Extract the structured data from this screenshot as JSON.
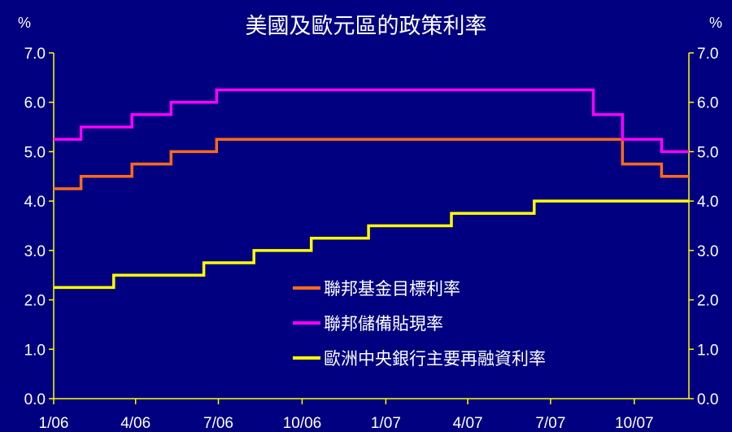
{
  "chart_data": {
    "type": "line",
    "title": "美國及歐元區的政策利率",
    "ylabel_left": "%",
    "ylabel_right": "%",
    "ylim": [
      0,
      7
    ],
    "yticks": [
      "0.0",
      "1.0",
      "2.0",
      "3.0",
      "4.0",
      "5.0",
      "6.0",
      "7.0"
    ],
    "x_ticks": [
      "1/06",
      "4/06",
      "7/06",
      "10/06",
      "1/07",
      "4/07",
      "7/07",
      "10/07"
    ],
    "x_range": [
      "2006-01-01",
      "2007-11-30"
    ],
    "grid": false,
    "legend_position": "center-right",
    "series": [
      {
        "name": "聯邦基金目標利率",
        "color": "#ff6a1a",
        "points": [
          [
            "2006-01-01",
            4.25
          ],
          [
            "2006-01-31",
            4.5
          ],
          [
            "2006-03-28",
            4.75
          ],
          [
            "2006-05-10",
            5.0
          ],
          [
            "2006-06-29",
            5.25
          ],
          [
            "2007-09-18",
            4.75
          ],
          [
            "2007-10-31",
            4.5
          ],
          [
            "2007-11-30",
            4.5
          ]
        ]
      },
      {
        "name": "聯邦儲備貼現率",
        "color": "#ff00ff",
        "points": [
          [
            "2006-01-01",
            5.25
          ],
          [
            "2006-01-31",
            5.5
          ],
          [
            "2006-03-28",
            5.75
          ],
          [
            "2006-05-10",
            6.0
          ],
          [
            "2006-06-29",
            6.25
          ],
          [
            "2007-08-17",
            5.75
          ],
          [
            "2007-09-18",
            5.25
          ],
          [
            "2007-10-31",
            5.0
          ],
          [
            "2007-11-30",
            5.0
          ]
        ]
      },
      {
        "name": "歐洲中央銀行主要再融資利率",
        "color": "#ffff00",
        "points": [
          [
            "2006-01-01",
            2.25
          ],
          [
            "2006-03-08",
            2.5
          ],
          [
            "2006-06-15",
            2.75
          ],
          [
            "2006-08-09",
            3.0
          ],
          [
            "2006-10-11",
            3.25
          ],
          [
            "2006-12-13",
            3.5
          ],
          [
            "2007-03-14",
            3.75
          ],
          [
            "2007-06-13",
            4.0
          ],
          [
            "2007-11-30",
            4.0
          ]
        ]
      }
    ]
  },
  "colors": {
    "background": "#000080",
    "axis": "#ffff00",
    "text": "#ffffff"
  }
}
